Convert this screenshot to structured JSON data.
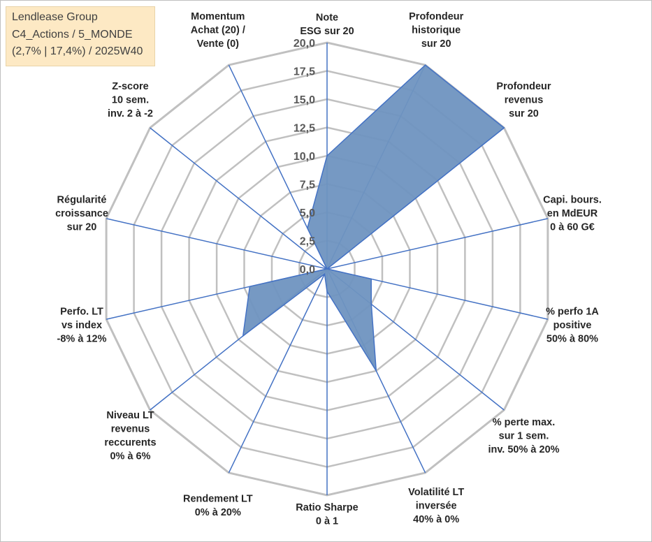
{
  "title_box": {
    "line1": "Lendlease Group",
    "line2": "C4_Actions / 5_MONDE",
    "line3": "(2,7% | 17,4%) / 2025W40"
  },
  "chart_data": {
    "type": "radar",
    "rmin": 0,
    "rmax": 20,
    "ticks": [
      "0,0",
      "2,5",
      "5,0",
      "7,5",
      "10,0",
      "12,5",
      "15,0",
      "17,5",
      "20,0"
    ],
    "axes": [
      {
        "label": [
          "Note",
          "ESG sur 20"
        ]
      },
      {
        "label": [
          "Profondeur",
          "historique",
          "sur 20"
        ]
      },
      {
        "label": [
          "Profondeur",
          "revenus",
          "sur 20"
        ]
      },
      {
        "label": [
          "Capi. bours.",
          "en MdEUR",
          "0 à 60 G€"
        ]
      },
      {
        "label": [
          "% perfo 1A",
          "positive",
          "50% à 80%"
        ]
      },
      {
        "label": [
          "% perte max.",
          "sur 1 sem.",
          "inv. 50% à 20%"
        ]
      },
      {
        "label": [
          "Volatilité LT",
          "inversée",
          "40% à 0%"
        ]
      },
      {
        "label": [
          "Ratio Sharpe",
          "0 à 1"
        ]
      },
      {
        "label": [
          "Rendement LT",
          "0% à 20%"
        ]
      },
      {
        "label": [
          "Niveau LT",
          "revenus",
          "reccurents",
          "0% à 6%"
        ]
      },
      {
        "label": [
          "Perfo. LT",
          "vs index",
          "-8% à 12%"
        ]
      },
      {
        "label": [
          "Régularité",
          "croissance",
          "sur 20"
        ]
      },
      {
        "label": [
          "Z-score",
          "10 sem.",
          "inv. 2 à -2"
        ]
      },
      {
        "label": [
          "Momentum",
          "Achat (20) /",
          "Vente (0)"
        ]
      }
    ],
    "values": [
      10,
      20,
      20,
      0,
      4,
      5,
      10,
      2,
      0.5,
      9.5,
      7,
      0,
      0,
      4
    ],
    "fill_color": "#6f93c0",
    "line_color": "#4472c4",
    "grid_color": "#c0c0c0"
  }
}
